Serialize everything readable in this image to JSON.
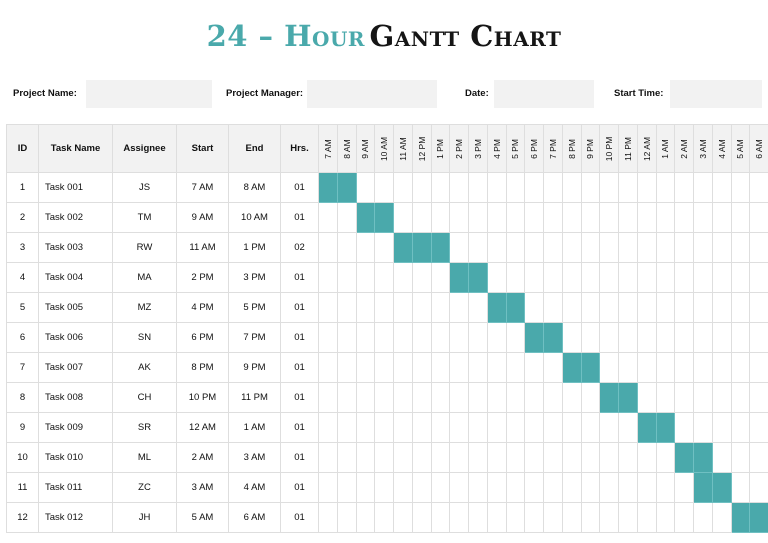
{
  "title": {
    "part1": "24 – Hour",
    "part2": "Gantt Chart"
  },
  "fields": {
    "project_name": {
      "label": "Project Name:",
      "value": ""
    },
    "project_manager": {
      "label": "Project Manager:",
      "value": ""
    },
    "date": {
      "label": "Date:",
      "value": ""
    },
    "start_time": {
      "label": "Start Time:",
      "value": ""
    }
  },
  "columns": [
    "ID",
    "Task Name",
    "Assignee",
    "Start",
    "End",
    "Hrs."
  ],
  "hours": [
    "7 AM",
    "8 AM",
    "9 AM",
    "10 AM",
    "11 AM",
    "12 PM",
    "1 PM",
    "2 PM",
    "3 PM",
    "4 PM",
    "5 PM",
    "6 PM",
    "7 PM",
    "8 PM",
    "9 PM",
    "10 PM",
    "11 PM",
    "12 AM",
    "1 AM",
    "2 AM",
    "3 AM",
    "4 AM",
    "5 AM",
    "6 AM"
  ],
  "bar_color": "#4aa9ab",
  "tasks": [
    {
      "id": "1",
      "name": "Task 001",
      "assignee": "JS",
      "start": "7 AM",
      "end": "8 AM",
      "hrs": "01"
    },
    {
      "id": "2",
      "name": "Task 002",
      "assignee": "TM",
      "start": "9 AM",
      "end": "10 AM",
      "hrs": "01"
    },
    {
      "id": "3",
      "name": "Task 003",
      "assignee": "RW",
      "start": "11 AM",
      "end": "1 PM",
      "hrs": "02"
    },
    {
      "id": "4",
      "name": "Task 004",
      "assignee": "MA",
      "start": "2 PM",
      "end": "3 PM",
      "hrs": "01"
    },
    {
      "id": "5",
      "name": "Task 005",
      "assignee": "MZ",
      "start": "4 PM",
      "end": "5 PM",
      "hrs": "01"
    },
    {
      "id": "6",
      "name": "Task 006",
      "assignee": "SN",
      "start": "6 PM",
      "end": "7 PM",
      "hrs": "01"
    },
    {
      "id": "7",
      "name": "Task 007",
      "assignee": "AK",
      "start": "8 PM",
      "end": "9 PM",
      "hrs": "01"
    },
    {
      "id": "8",
      "name": "Task 008",
      "assignee": "CH",
      "start": "10 PM",
      "end": "11 PM",
      "hrs": "01"
    },
    {
      "id": "9",
      "name": "Task 009",
      "assignee": "SR",
      "start": "12 AM",
      "end": "1 AM",
      "hrs": "01"
    },
    {
      "id": "10",
      "name": "Task 010",
      "assignee": "ML",
      "start": "2 AM",
      "end": "3 AM",
      "hrs": "01"
    },
    {
      "id": "11",
      "name": "Task 011",
      "assignee": "ZC",
      "start": "3 AM",
      "end": "4 AM",
      "hrs": "01"
    },
    {
      "id": "12",
      "name": "Task 012",
      "assignee": "JH",
      "start": "5 AM",
      "end": "6 AM",
      "hrs": "01"
    }
  ],
  "bars": [
    {
      "task": "1",
      "from": "7 AM",
      "to": "8 AM"
    },
    {
      "task": "2",
      "from": "9 AM",
      "to": "10 AM"
    },
    {
      "task": "3",
      "from": "11 AM",
      "to": "1 PM"
    },
    {
      "task": "4",
      "from": "2 PM",
      "to": "3 PM"
    },
    {
      "task": "5",
      "from": "4 PM",
      "to": "5 PM"
    },
    {
      "task": "6",
      "from": "6 PM",
      "to": "7 PM"
    },
    {
      "task": "7",
      "from": "8 PM",
      "to": "9 PM"
    },
    {
      "task": "8",
      "from": "10 PM",
      "to": "11 PM"
    },
    {
      "task": "9",
      "from": "12 AM",
      "to": "1 AM"
    },
    {
      "task": "10",
      "from": "2 AM",
      "to": "3 AM"
    },
    {
      "task": "11",
      "from": "3 AM",
      "to": "4 AM"
    },
    {
      "task": "12",
      "from": "5 AM",
      "to": "6 AM"
    }
  ]
}
